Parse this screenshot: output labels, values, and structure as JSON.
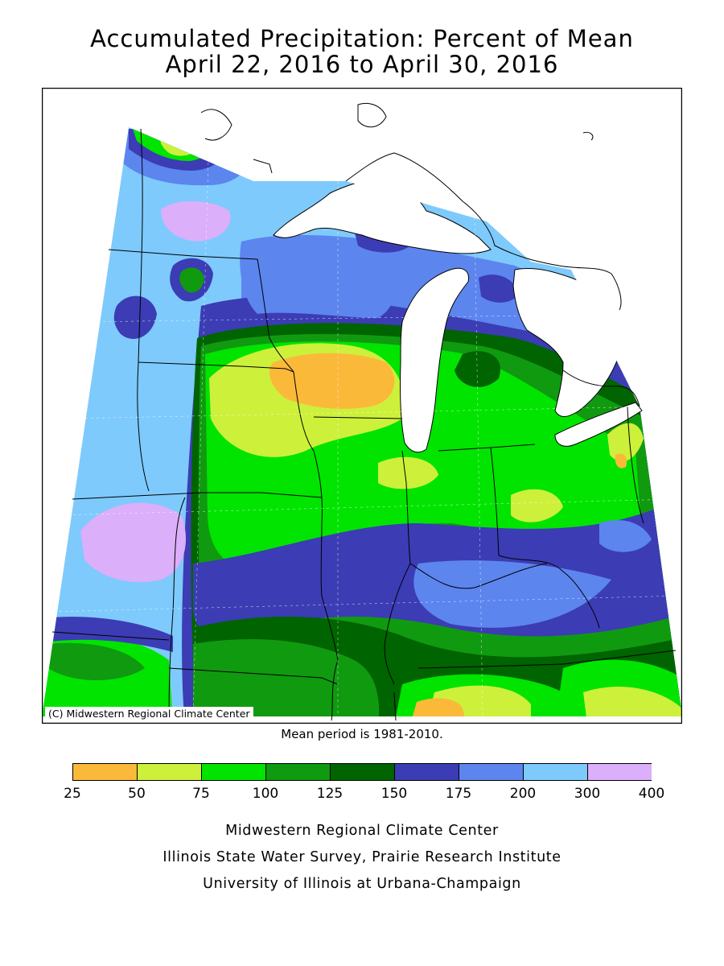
{
  "title_line1": "Accumulated Precipitation: Percent of Mean",
  "title_line2": "April 22, 2016 to April 30, 2016",
  "copyright": "(C) Midwestern Regional Climate Center",
  "mean_note": "Mean period is 1981-2010.",
  "legend": {
    "ticks": [
      "25",
      "50",
      "75",
      "100",
      "125",
      "150",
      "175",
      "200",
      "300",
      "400"
    ],
    "colors": [
      "#fbb93a",
      "#cdf03b",
      "#00e400",
      "#109a10",
      "#006400",
      "#3c3cb4",
      "#5c85ee",
      "#7ecafc",
      "#dcaffa"
    ]
  },
  "credits": [
    "Midwestern Regional Climate Center",
    "Illinois State Water Survey, Prairie Research Institute",
    "University of Illinois at Urbana-Champaign"
  ]
}
